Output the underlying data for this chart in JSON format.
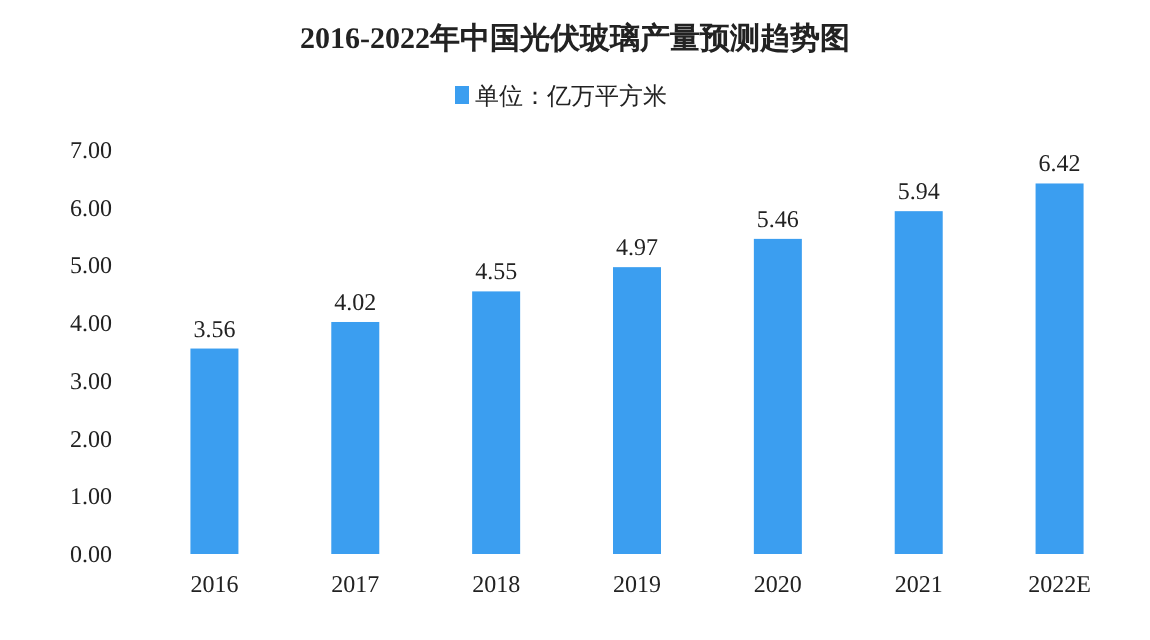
{
  "chart_data": {
    "type": "bar",
    "title": "2016-2022年中国光伏玻璃产量预测趋势图",
    "categories": [
      "2016",
      "2017",
      "2018",
      "2019",
      "2020",
      "2021",
      "2022E"
    ],
    "series": [
      {
        "name": "单位：亿万平方米",
        "color": "#3b9ef0",
        "values": [
          3.56,
          4.02,
          4.55,
          4.97,
          5.46,
          5.94,
          6.42
        ]
      }
    ],
    "ylim": [
      0,
      7
    ],
    "yticks": [
      {
        "value": 0,
        "label": "0.00"
      },
      {
        "value": 1,
        "label": "1.00"
      },
      {
        "value": 2,
        "label": "2.00"
      },
      {
        "value": 3,
        "label": "3.00"
      },
      {
        "value": 4,
        "label": "4.00"
      },
      {
        "value": 5,
        "label": "5.00"
      },
      {
        "value": 6,
        "label": "6.00"
      },
      {
        "value": 7,
        "label": "7.00"
      }
    ],
    "data_labels": true,
    "legend": "top",
    "grid": false
  }
}
